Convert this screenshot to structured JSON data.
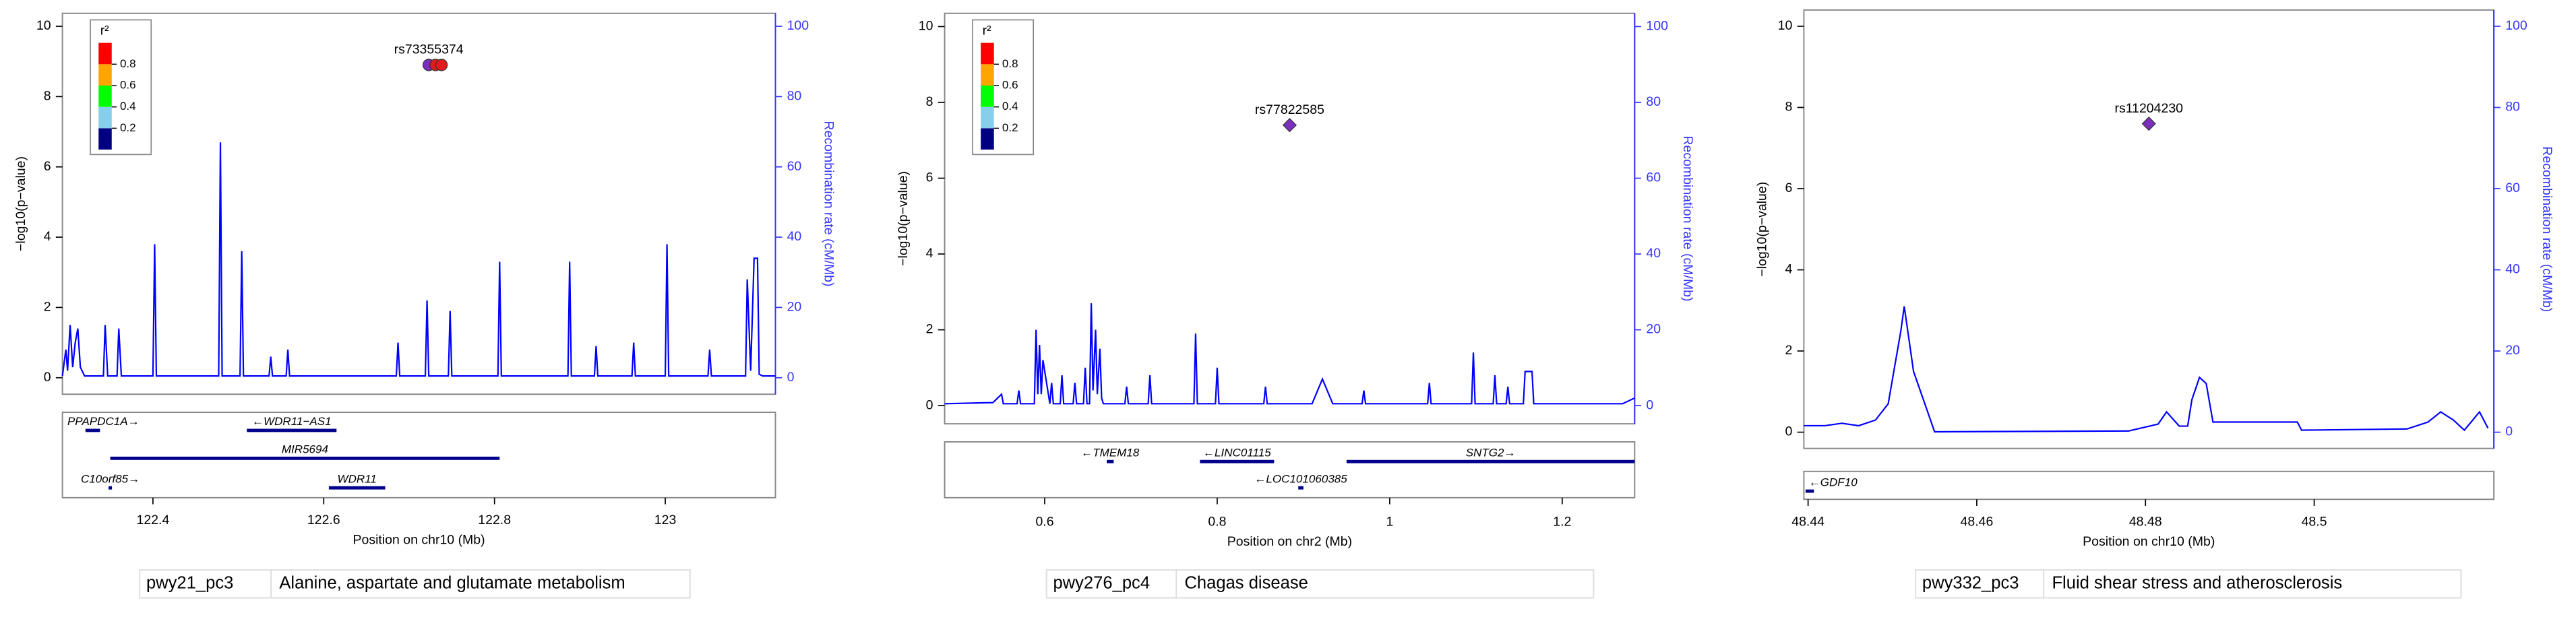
{
  "chart_data": [
    {
      "type": "locuszoom",
      "xlabel": "Position on chr10 (Mb)",
      "ylabel": "−log10(p−value)",
      "y2label": "Recombination rate (cM/Mb)",
      "xlim": [
        122.294,
        123.129
      ],
      "xticks": [
        122.4,
        122.6,
        122.8,
        123
      ],
      "ylim": [
        -0.47,
        10.37
      ],
      "yticks": [
        0,
        2,
        4,
        6,
        8,
        10
      ],
      "y2lim": [
        -4.7,
        103.7
      ],
      "y2ticks": [
        0,
        20,
        40,
        60,
        80,
        100
      ],
      "legend": {
        "title": "r²",
        "colors": [
          "#000080",
          "#87ceeb",
          "#00ff00",
          "#ffa500",
          "#ff0000"
        ],
        "ticks": [
          0.2,
          0.4,
          0.6,
          0.8
        ]
      },
      "snps": [
        {
          "label": "rs73355374",
          "x": 122.723,
          "y": 8.9,
          "color": "#7b2fbe",
          "shape": "circle"
        },
        {
          "x": 122.731,
          "y": 8.9,
          "color": "#e41a1c",
          "shape": "circle"
        },
        {
          "x": 122.738,
          "y": 8.9,
          "color": "#e41a1c",
          "shape": "circle"
        }
      ],
      "recombination": {
        "color": "#0000ff",
        "x": [
          122.294,
          122.298,
          122.3,
          122.303,
          122.306,
          122.309,
          122.312,
          122.315,
          122.32,
          122.342,
          122.344,
          122.347,
          122.358,
          122.36,
          122.363,
          122.4,
          122.402,
          122.404,
          122.477,
          122.479,
          122.481,
          122.502,
          122.504,
          122.506,
          122.536,
          122.538,
          122.54,
          122.556,
          122.558,
          122.56,
          122.685,
          122.687,
          122.689,
          122.719,
          122.721,
          122.723,
          122.746,
          122.748,
          122.75,
          122.804,
          122.806,
          122.808,
          122.886,
          122.888,
          122.89,
          122.917,
          122.919,
          122.921,
          122.961,
          122.963,
          122.965,
          123.0,
          123.002,
          123.004,
          123.05,
          123.052,
          123.054,
          123.094,
          123.096,
          123.1,
          123.104,
          123.108,
          123.11,
          123.114,
          123.129
        ],
        "values": [
          0.5,
          8,
          2,
          15,
          3,
          10,
          14,
          3,
          0.5,
          0.5,
          15,
          0.5,
          0.5,
          14,
          0.5,
          0.5,
          38,
          0.5,
          0.5,
          67,
          0.5,
          0.5,
          36,
          0.5,
          0.5,
          6,
          0.5,
          0.5,
          8,
          0.5,
          0.5,
          10,
          0.5,
          0.5,
          22,
          0.5,
          0.5,
          19,
          0.5,
          0.5,
          33,
          0.5,
          0.5,
          33,
          0.5,
          0.5,
          9,
          0.5,
          0.5,
          10,
          0.5,
          0.5,
          38,
          0.5,
          0.5,
          8,
          0.5,
          0.5,
          28,
          2,
          34,
          34,
          1,
          0.5,
          0.5
        ]
      },
      "genes": [
        {
          "label": "PPAPDC1A→",
          "start": 122.321,
          "end": 122.338
        },
        {
          "label": "←WDR11−AS1",
          "start": 122.51,
          "end": 122.615
        },
        {
          "label": "MIR5694",
          "start": 122.35,
          "end": 122.806
        },
        {
          "label": "C10orf85→",
          "start": 122.348,
          "end": 122.352
        },
        {
          "label": "WDR11",
          "start": 122.606,
          "end": 122.672
        }
      ]
    },
    {
      "type": "locuszoom",
      "xlabel": "Position on chr2 (Mb)",
      "ylabel": "−log10(p−value)",
      "y2label": "Recombination rate (cM/Mb)",
      "xlim": [
        0.484,
        1.284
      ],
      "xticks": [
        0.6,
        0.8,
        1,
        1.2
      ],
      "ylim": [
        -0.48,
        10.35
      ],
      "yticks": [
        0,
        2,
        4,
        6,
        8,
        10
      ],
      "y2lim": [
        -4.8,
        103.5
      ],
      "y2ticks": [
        0,
        20,
        40,
        60,
        80,
        100
      ],
      "legend": {
        "title": "r²",
        "colors": [
          "#000080",
          "#87ceeb",
          "#00ff00",
          "#ffa500",
          "#ff0000"
        ],
        "ticks": [
          0.2,
          0.4,
          0.6,
          0.8
        ]
      },
      "snps": [
        {
          "label": "rs77822585",
          "x": 0.884,
          "y": 7.4,
          "color": "#7b2fbe",
          "shape": "diamond"
        }
      ],
      "recombination": {
        "color": "#0000ff",
        "x": [
          0.484,
          0.54,
          0.55,
          0.552,
          0.568,
          0.57,
          0.572,
          0.588,
          0.59,
          0.592,
          0.594,
          0.596,
          0.598,
          0.606,
          0.608,
          0.61,
          0.618,
          0.62,
          0.622,
          0.633,
          0.635,
          0.637,
          0.645,
          0.647,
          0.649,
          0.652,
          0.654,
          0.656,
          0.659,
          0.661,
          0.664,
          0.666,
          0.668,
          0.693,
          0.695,
          0.697,
          0.72,
          0.722,
          0.724,
          0.773,
          0.775,
          0.777,
          0.798,
          0.8,
          0.802,
          0.854,
          0.856,
          0.858,
          0.91,
          0.922,
          0.934,
          0.968,
          0.97,
          0.972,
          1.044,
          1.046,
          1.048,
          1.095,
          1.097,
          1.099,
          1.12,
          1.122,
          1.124,
          1.135,
          1.137,
          1.139,
          1.155,
          1.157,
          1.165,
          1.167,
          1.2,
          1.27,
          1.284
        ],
        "values": [
          0.5,
          0.8,
          3,
          0.5,
          0.5,
          4,
          0.5,
          0.5,
          20,
          3,
          16,
          3,
          12,
          0.5,
          6,
          0.5,
          0.5,
          8,
          0.5,
          0.5,
          6,
          0.5,
          0.5,
          10,
          0.5,
          0.5,
          27,
          4,
          20,
          3,
          15,
          2,
          0.5,
          0.5,
          5,
          0.5,
          0.5,
          8,
          0.5,
          0.5,
          19,
          0.5,
          0.5,
          10,
          0.5,
          0.5,
          5,
          0.5,
          0.5,
          7,
          0.5,
          0.5,
          4,
          0.5,
          0.5,
          6,
          0.5,
          0.5,
          14,
          0.5,
          0.5,
          8,
          0.5,
          0.5,
          5,
          0.5,
          0.5,
          9,
          9,
          0.5,
          0.5,
          0.5,
          2
        ]
      },
      "genes": [
        {
          "label": "←TMEM18",
          "start": 0.672,
          "end": 0.68
        },
        {
          "label": "←LINC01115",
          "start": 0.78,
          "end": 0.866
        },
        {
          "label": "←LOC101060385",
          "start": 0.894,
          "end": 0.9
        },
        {
          "label": "SNTG2→",
          "start": 0.95,
          "end": 1.284
        }
      ]
    },
    {
      "type": "locuszoom",
      "xlabel": "Position on chr10 (Mb)",
      "ylabel": "−log10(p−value)",
      "y2label": "Recombination rate (cM/Mb)",
      "xlim": [
        48.4395,
        48.5213
      ],
      "xticks": [
        48.44,
        48.46,
        48.48,
        48.5
      ],
      "ylim": [
        -0.4,
        10.4
      ],
      "yticks": [
        0,
        2,
        4,
        6,
        8,
        10
      ],
      "y2lim": [
        -4,
        104
      ],
      "y2ticks": [
        0,
        20,
        40,
        60,
        80,
        100
      ],
      "snps": [
        {
          "label": "rs11204230",
          "x": 48.4804,
          "y": 7.6,
          "color": "#7b2fbe",
          "shape": "diamond"
        }
      ],
      "recombination": {
        "color": "#0000ff",
        "x": [
          48.4395,
          48.442,
          48.444,
          48.446,
          48.448,
          48.4495,
          48.451,
          48.4514,
          48.4525,
          48.455,
          48.478,
          48.4815,
          48.4825,
          48.484,
          48.485,
          48.4855,
          48.4864,
          48.4872,
          48.488,
          48.498,
          48.4985,
          48.511,
          48.5135,
          48.515,
          48.5165,
          48.5178,
          48.5196,
          48.5206
        ],
        "values": [
          1.6,
          1.6,
          2.2,
          1.6,
          3,
          7,
          25,
          31,
          15,
          0.1,
          0.3,
          2,
          5,
          1.5,
          1.5,
          8,
          13.5,
          12,
          2.5,
          2.5,
          0.5,
          0.8,
          2.5,
          5,
          3,
          0.5,
          5,
          1
        ]
      },
      "genes": [
        {
          "label": "←GDF10",
          "start": 48.4397,
          "end": 48.4407
        }
      ]
    }
  ],
  "captions": [
    {
      "id": "pwy21_pc3",
      "name": "Alanine, aspartate and glutamate metabolism"
    },
    {
      "id": "pwy276_pc4",
      "name": "Chagas disease"
    },
    {
      "id": "pwy332_pc3",
      "name": "Fluid shear stress and atherosclerosis"
    }
  ]
}
